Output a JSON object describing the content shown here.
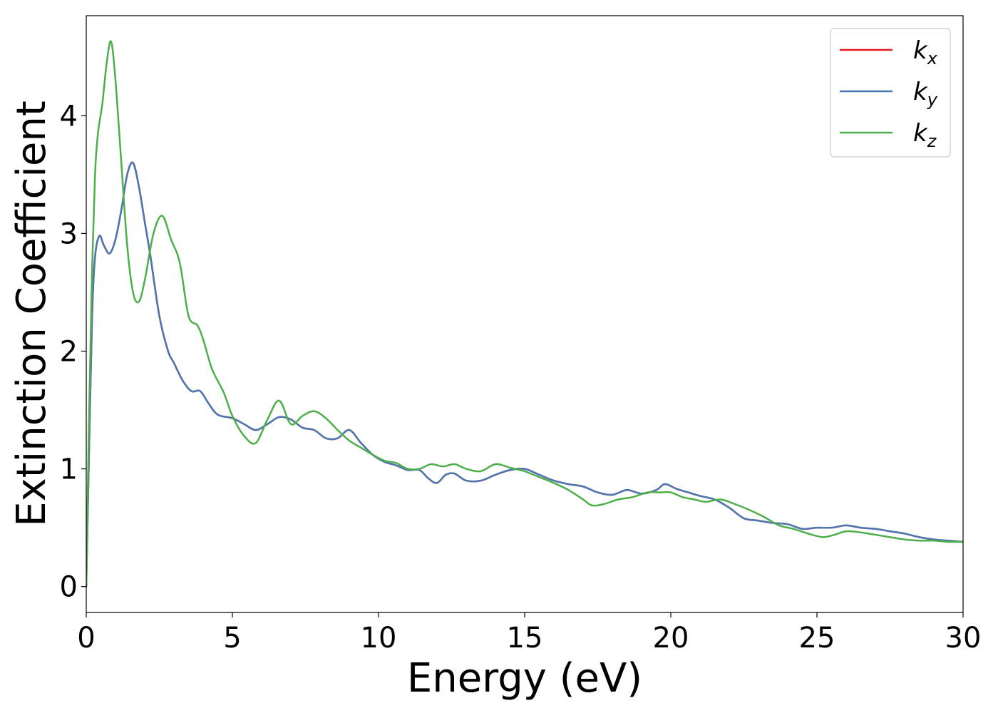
{
  "chart_data": {
    "type": "line",
    "title": "",
    "xlabel": "Energy (eV)",
    "ylabel": "Extinction Coefficient",
    "xlim": [
      0,
      30
    ],
    "ylim": [
      -0.22,
      4.85
    ],
    "xticks": [
      0,
      5,
      10,
      15,
      20,
      25,
      30
    ],
    "yticks": [
      0,
      1,
      2,
      3,
      4
    ],
    "grid": false,
    "legend_position": "top-right",
    "series": [
      {
        "name": "k_x",
        "legend_base": "k",
        "legend_sub": "x",
        "color": "#e41a1c",
        "shared_with": "k_y",
        "x": [
          0,
          0.1,
          0.2,
          0.3,
          0.45,
          0.6,
          0.8,
          1.0,
          1.2,
          1.4,
          1.6,
          1.8,
          2.0,
          2.2,
          2.5,
          2.8,
          3.0,
          3.3,
          3.6,
          3.9,
          4.2,
          4.5,
          5.0,
          5.4,
          5.8,
          6.2,
          6.6,
          7.0,
          7.4,
          7.8,
          8.2,
          8.6,
          9.0,
          9.4,
          9.8,
          10.2,
          10.6,
          11.0,
          11.4,
          11.7,
          12.0,
          12.3,
          12.6,
          13.0,
          13.5,
          14.0,
          14.5,
          15.0,
          15.5,
          16.0,
          16.5,
          17.0,
          17.5,
          18.0,
          18.5,
          19.0,
          19.5,
          19.8,
          20.2,
          20.6,
          21.0,
          21.5,
          22.0,
          22.5,
          23.0,
          23.5,
          24.0,
          24.5,
          25.0,
          25.5,
          26.0,
          26.5,
          27.0,
          27.5,
          28.0,
          28.5,
          29.0,
          29.5,
          30.0
        ],
        "y": [
          0.0,
          1.2,
          2.3,
          2.8,
          2.98,
          2.9,
          2.83,
          2.95,
          3.2,
          3.5,
          3.6,
          3.4,
          3.1,
          2.8,
          2.3,
          2.0,
          1.9,
          1.75,
          1.66,
          1.66,
          1.55,
          1.46,
          1.43,
          1.38,
          1.33,
          1.38,
          1.44,
          1.42,
          1.35,
          1.33,
          1.26,
          1.26,
          1.33,
          1.22,
          1.12,
          1.06,
          1.03,
          0.99,
          0.99,
          0.92,
          0.88,
          0.95,
          0.96,
          0.9,
          0.9,
          0.95,
          0.99,
          1.0,
          0.95,
          0.9,
          0.87,
          0.85,
          0.8,
          0.78,
          0.82,
          0.79,
          0.82,
          0.87,
          0.83,
          0.8,
          0.77,
          0.74,
          0.67,
          0.58,
          0.56,
          0.54,
          0.53,
          0.49,
          0.5,
          0.5,
          0.52,
          0.5,
          0.49,
          0.47,
          0.45,
          0.42,
          0.4,
          0.39,
          0.38
        ]
      },
      {
        "name": "k_y",
        "legend_base": "k",
        "legend_sub": "y",
        "color": "#4a78b2",
        "x": [
          0,
          0.1,
          0.2,
          0.3,
          0.45,
          0.6,
          0.8,
          1.0,
          1.2,
          1.4,
          1.6,
          1.8,
          2.0,
          2.2,
          2.5,
          2.8,
          3.0,
          3.3,
          3.6,
          3.9,
          4.2,
          4.5,
          5.0,
          5.4,
          5.8,
          6.2,
          6.6,
          7.0,
          7.4,
          7.8,
          8.2,
          8.6,
          9.0,
          9.4,
          9.8,
          10.2,
          10.6,
          11.0,
          11.4,
          11.7,
          12.0,
          12.3,
          12.6,
          13.0,
          13.5,
          14.0,
          14.5,
          15.0,
          15.5,
          16.0,
          16.5,
          17.0,
          17.5,
          18.0,
          18.5,
          19.0,
          19.5,
          19.8,
          20.2,
          20.6,
          21.0,
          21.5,
          22.0,
          22.5,
          23.0,
          23.5,
          24.0,
          24.5,
          25.0,
          25.5,
          26.0,
          26.5,
          27.0,
          27.5,
          28.0,
          28.5,
          29.0,
          29.5,
          30.0
        ],
        "y": [
          0.0,
          1.2,
          2.3,
          2.8,
          2.98,
          2.9,
          2.83,
          2.95,
          3.2,
          3.5,
          3.6,
          3.4,
          3.1,
          2.8,
          2.3,
          2.0,
          1.9,
          1.75,
          1.66,
          1.66,
          1.55,
          1.46,
          1.43,
          1.38,
          1.33,
          1.38,
          1.44,
          1.42,
          1.35,
          1.33,
          1.26,
          1.26,
          1.33,
          1.22,
          1.12,
          1.06,
          1.03,
          0.99,
          0.99,
          0.92,
          0.88,
          0.95,
          0.96,
          0.9,
          0.9,
          0.95,
          0.99,
          1.0,
          0.95,
          0.9,
          0.87,
          0.85,
          0.8,
          0.78,
          0.82,
          0.79,
          0.82,
          0.87,
          0.83,
          0.8,
          0.77,
          0.74,
          0.67,
          0.58,
          0.56,
          0.54,
          0.53,
          0.49,
          0.5,
          0.5,
          0.52,
          0.5,
          0.49,
          0.47,
          0.45,
          0.42,
          0.4,
          0.39,
          0.38
        ]
      },
      {
        "name": "k_z",
        "legend_base": "k",
        "legend_sub": "z",
        "color": "#4daf4a",
        "x": [
          0,
          0.1,
          0.2,
          0.3,
          0.4,
          0.55,
          0.7,
          0.85,
          1.0,
          1.2,
          1.4,
          1.6,
          1.8,
          2.0,
          2.3,
          2.6,
          2.9,
          3.2,
          3.5,
          3.8,
          4.0,
          4.3,
          4.7,
          5.0,
          5.4,
          5.8,
          6.2,
          6.6,
          7.0,
          7.4,
          7.8,
          8.2,
          8.6,
          9.0,
          9.4,
          9.8,
          10.2,
          10.6,
          11.0,
          11.4,
          11.8,
          12.2,
          12.6,
          13.0,
          13.5,
          14.0,
          14.5,
          15.0,
          15.5,
          16.0,
          16.5,
          17.0,
          17.3,
          17.7,
          18.2,
          18.7,
          19.2,
          19.6,
          20.0,
          20.4,
          20.8,
          21.2,
          21.7,
          22.2,
          22.7,
          23.2,
          23.7,
          24.2,
          24.7,
          25.2,
          25.6,
          26.0,
          26.5,
          27.0,
          27.5,
          28.0,
          28.5,
          29.0,
          29.5,
          30.0
        ],
        "y": [
          0.0,
          1.5,
          2.7,
          3.5,
          3.85,
          4.1,
          4.45,
          4.63,
          4.3,
          3.6,
          2.9,
          2.5,
          2.42,
          2.6,
          3.0,
          3.15,
          2.95,
          2.75,
          2.3,
          2.22,
          2.1,
          1.85,
          1.65,
          1.45,
          1.28,
          1.22,
          1.42,
          1.58,
          1.38,
          1.45,
          1.49,
          1.43,
          1.33,
          1.24,
          1.18,
          1.12,
          1.07,
          1.05,
          1.0,
          1.0,
          1.04,
          1.02,
          1.04,
          1.0,
          0.98,
          1.04,
          1.01,
          0.98,
          0.93,
          0.88,
          0.82,
          0.74,
          0.69,
          0.7,
          0.74,
          0.76,
          0.8,
          0.8,
          0.8,
          0.76,
          0.74,
          0.72,
          0.74,
          0.7,
          0.65,
          0.59,
          0.52,
          0.49,
          0.45,
          0.42,
          0.44,
          0.47,
          0.46,
          0.44,
          0.42,
          0.4,
          0.39,
          0.39,
          0.38,
          0.38
        ]
      }
    ]
  }
}
